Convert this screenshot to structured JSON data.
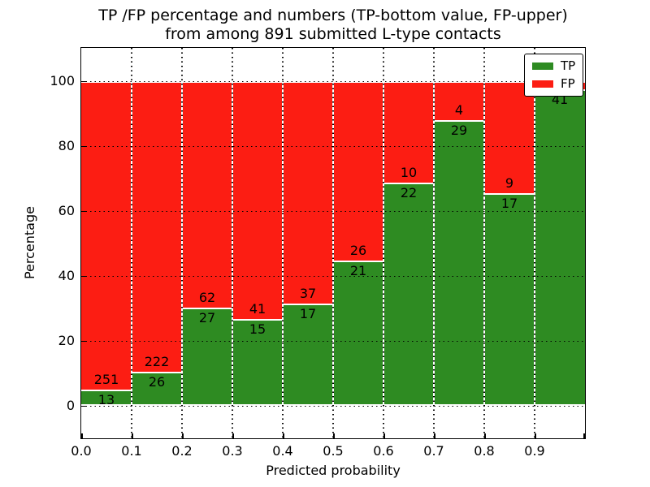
{
  "title": {
    "line1": "TP /FP percentage and numbers (TP-bottom value, FP-upper)",
    "line2": "from among 891 submitted L-type contacts"
  },
  "x_axis": {
    "label": "Predicted probability",
    "ticks": [
      "0.0",
      "0.1",
      "0.2",
      "0.3",
      "0.4",
      "0.5",
      "0.6",
      "0.7",
      "0.8",
      "0.9"
    ]
  },
  "y_axis": {
    "label": "Percentage",
    "ticks": [
      "0",
      "20",
      "40",
      "60",
      "80",
      "100"
    ]
  },
  "legend": {
    "items": [
      {
        "label": "TP",
        "color": "#2e8b22"
      },
      {
        "label": "FP",
        "color": "#fc1d13"
      }
    ]
  },
  "chart_data": {
    "type": "bar",
    "stacked": true,
    "normalized": "each bin stacked to 100%",
    "title": "TP /FP percentage and numbers (TP-bottom value, FP-upper) from among 891 submitted L-type contacts",
    "xlabel": "Predicted probability",
    "ylabel": "Percentage",
    "xlim": [
      0.0,
      1.0
    ],
    "ylim": [
      -10,
      110
    ],
    "bin_width": 0.1,
    "grid": "dotted black, both axes",
    "legend_position": "upper right",
    "total_submitted": 891,
    "categories": [
      "0.0-0.1",
      "0.1-0.2",
      "0.2-0.3",
      "0.3-0.4",
      "0.4-0.5",
      "0.5-0.6",
      "0.6-0.7",
      "0.7-0.8",
      "0.8-0.9",
      "0.9-1.0"
    ],
    "series": [
      {
        "name": "TP",
        "color": "#2e8b22",
        "counts": [
          13,
          26,
          27,
          15,
          17,
          21,
          22,
          29,
          17,
          41
        ],
        "percent": [
          4.9,
          10.5,
          30.3,
          26.8,
          31.5,
          44.7,
          68.8,
          87.9,
          65.4,
          97.6
        ]
      },
      {
        "name": "FP",
        "color": "#fc1d13",
        "counts": [
          251,
          222,
          62,
          41,
          37,
          26,
          10,
          4,
          9,
          null
        ],
        "percent": [
          95.1,
          89.5,
          69.7,
          73.2,
          68.5,
          55.3,
          31.2,
          12.1,
          34.6,
          2.4
        ]
      }
    ]
  }
}
